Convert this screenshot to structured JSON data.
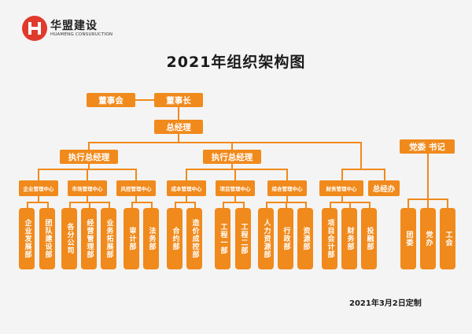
{
  "company": {
    "name": "华盟建设",
    "subtitle": "HUAMENG CONSURUCTION"
  },
  "title": "2021年组织架构图",
  "footer": "2021年3月2日定制",
  "colors": {
    "node": "#f08a1c",
    "logo": "#e03a2c",
    "background": "#f4f4f4"
  },
  "nodes": {
    "board": "董事会",
    "chairman": "董事长",
    "gm": "总经理",
    "exec_left": "执行总经理",
    "exec_right": "执行总经理",
    "party": "党委 书记",
    "center_enterprise": "企业管理中心",
    "center_market": "市场管理中心",
    "center_risk": "风控管理中心",
    "center_cost": "成本管理中心",
    "center_project": "项目管理中心",
    "center_general": "综合管理中心",
    "center_finance": "财务管理中心",
    "gm_office": "总经办",
    "dept_dev": "企业发展部",
    "dept_team": "团队建设部",
    "dept_branch": "各分公司",
    "dept_opmgmt": "经营管理部",
    "dept_bizexp": "业务拓展部",
    "dept_audit": "审计部",
    "dept_legal": "法务部",
    "dept_contract": "合约部",
    "dept_costctrl": "造价成控部",
    "dept_eng1": "工程一部",
    "dept_eng2": "工程二部",
    "dept_hr": "人力资源部",
    "dept_admin": "行政部",
    "dept_purchase": "资源部",
    "dept_projacct": "项目会计部",
    "dept_finance": "财务部",
    "dept_invest": "投融部",
    "dept_league": "团委",
    "dept_partyoffice": "党办",
    "dept_union": "工会"
  }
}
